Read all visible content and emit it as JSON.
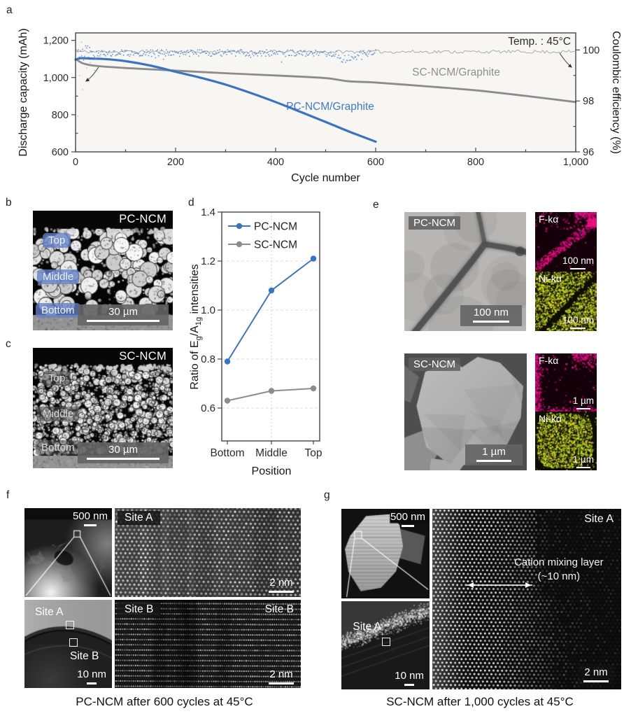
{
  "colors": {
    "pc_blue": "#3c73c1",
    "pc_blue_text": "#4079c9",
    "sc_gray": "#8c8c8c",
    "sc_gray_text": "#8f8f8f",
    "ce_blue": "#5e8fd2",
    "ce_gray": "#a2a2a2",
    "magenta": "#e21384",
    "ni_green": "#bcc72e",
    "axis": "#3d3d3d"
  },
  "chart_data": [
    {
      "id": "a",
      "type": "line",
      "xlabel": "Cycle number",
      "ylabel_left": "Discharge capacity (mAh)",
      "ylabel_right": "Coulombic efficiency (%)",
      "annotation": "Temp. : 45°C",
      "xlim": [
        0,
        1000
      ],
      "xticks": [
        0,
        200,
        400,
        600,
        800,
        1000
      ],
      "xtick_labels": [
        "0",
        "200",
        "400",
        "600",
        "800",
        "1,000"
      ],
      "ylim_left": [
        600,
        1240
      ],
      "yticks_left": [
        600,
        800,
        1000,
        1200
      ],
      "ytick_labels_left": [
        "600",
        "800",
        "1,000",
        "1,200"
      ],
      "ylim_right": [
        96,
        100.67
      ],
      "yticks_right": [
        96,
        98,
        100
      ],
      "ytick_labels_right": [
        "96",
        "98",
        "100"
      ],
      "grid": false,
      "legend_position": "inline-curve-labels",
      "series": [
        {
          "name": "PC-NCM/Graphite",
          "role": "capacity",
          "axis": "left",
          "color": "#3c73c1",
          "width": 3.2,
          "points": [
            [
              0,
              1095
            ],
            [
              10,
              1104
            ],
            [
              30,
              1102
            ],
            [
              60,
              1099
            ],
            [
              100,
              1088
            ],
            [
              150,
              1064
            ],
            [
              200,
              1031
            ],
            [
              250,
              999
            ],
            [
              300,
              962
            ],
            [
              350,
              917
            ],
            [
              400,
              868
            ],
            [
              450,
              815
            ],
            [
              500,
              761
            ],
            [
              550,
              706
            ],
            [
              600,
              655
            ]
          ]
        },
        {
          "name": "SC-NCM/Graphite",
          "role": "capacity",
          "axis": "left",
          "color": "#8c8c8c",
          "width": 2.8,
          "points": [
            [
              0,
              1100
            ],
            [
              15,
              1076
            ],
            [
              40,
              1063
            ],
            [
              100,
              1051
            ],
            [
              200,
              1037
            ],
            [
              300,
              1023
            ],
            [
              400,
              1011
            ],
            [
              500,
              997
            ],
            [
              545,
              980
            ],
            [
              600,
              973
            ],
            [
              700,
              953
            ],
            [
              800,
              931
            ],
            [
              900,
              901
            ],
            [
              1000,
              868
            ]
          ]
        },
        {
          "name": "PC-NCM/Graphite coulombic efficiency",
          "role": "ce-scatter",
          "axis": "right",
          "color": "#5e8fd2",
          "mean": 99.88,
          "noise": 0.13,
          "range": [
            2,
            600
          ],
          "dip_at": 540,
          "dip_depth": 0.4
        },
        {
          "name": "SC-NCM/Graphite coulombic efficiency",
          "role": "ce-line",
          "axis": "right",
          "color": "#a2a2a2",
          "mean": 99.93,
          "noise": 0.065,
          "range": [
            2,
            1000
          ]
        }
      ],
      "curve_labels": [
        {
          "text": "SC-NCM/Graphite",
          "color": "#8f8f8f",
          "x": 652,
          "y": 108
        },
        {
          "text": "PC-NCM/Graphite",
          "color": "#4079c9",
          "x": 472,
          "y": 157
        }
      ]
    },
    {
      "id": "d",
      "type": "line",
      "categories": [
        "Bottom",
        "Middle",
        "Top"
      ],
      "xlabel": "Position",
      "ylabel": "Ratio of Eg/A1g intensities",
      "ylim": [
        0.47,
        1.4
      ],
      "yticks": [
        0.6,
        0.8,
        1.0,
        1.2,
        1.4
      ],
      "ytick_labels": [
        "0.6",
        "0.8",
        "1.0",
        "1.2",
        "1.4"
      ],
      "grid": "horizontal-dashed",
      "legend_position": "top-left",
      "series": [
        {
          "name": "PC-NCM",
          "color": "#3c73c1",
          "values": [
            0.79,
            1.08,
            1.21
          ]
        },
        {
          "name": "SC-NCM",
          "color": "#8c8c8c",
          "values": [
            0.63,
            0.67,
            0.68
          ]
        }
      ]
    }
  ],
  "panels": {
    "a": {
      "letter": "a"
    },
    "b": {
      "letter": "b",
      "sample": "PC-NCM",
      "tags": [
        "Top",
        "Middle",
        "Bottom"
      ],
      "scale_bar": "30 µm"
    },
    "c": {
      "letter": "c",
      "sample": "SC-NCM",
      "tags": [
        "Top",
        "Middle",
        "Bottom"
      ],
      "scale_bar": "30 µm"
    },
    "d": {
      "letter": "d",
      "ylabel_parts": {
        "p1": "Ratio of E",
        "s1": "g",
        "p2": "/A",
        "s2": "1g",
        "p3": " intensities"
      }
    },
    "e": {
      "letter": "e",
      "pc": {
        "sample": "PC-NCM",
        "scale_bar": "100 nm",
        "map1_label": "F-kα",
        "map1_scale": "100 nm",
        "map2_label": "Ni-kα",
        "map2_scale": "100 nm"
      },
      "sc": {
        "sample": "SC-NCM",
        "scale_bar": "1 µm",
        "map1_label": "F-kα",
        "map1_scale": "1 µm",
        "map2_label": "Ni-kα",
        "map2_scale": "1 µm"
      }
    },
    "f": {
      "letter": "f",
      "overview_scale": "500 nm",
      "site_a": "Site A",
      "site_b": "Site B",
      "inset_scale": "10 nm",
      "lattice_scale_a": "2 nm",
      "lattice_scale_b": "2 nm",
      "caption": "PC-NCM after 600 cycles at 45°C"
    },
    "g": {
      "letter": "g",
      "overview_scale": "500 nm",
      "site_a": "Site A",
      "inset_scale": "10 nm",
      "lattice_scale": "2 nm",
      "annotation_line1": "Cation mixing layer",
      "annotation_line2": "(~10 nm)",
      "caption": "SC-NCM after 1,000 cycles at 45°C"
    }
  }
}
